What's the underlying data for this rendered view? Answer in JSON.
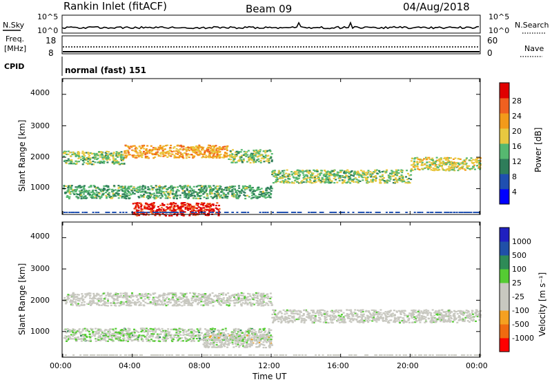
{
  "header": {
    "station": "Rankin Inlet (fitACF)",
    "beam": "Beam 09",
    "date": "04/Aug/2018"
  },
  "noise_panel": {
    "left_label": "N.Sky",
    "right_label": "N.Search",
    "left_ticks": [
      "10^5",
      "10^0"
    ],
    "right_ticks": [
      "10^5",
      "10^0"
    ]
  },
  "freq_panel": {
    "left_label_line1": "Freq.",
    "left_label_line2": "[MHz]",
    "right_label": "Nave",
    "left_ticks": [
      "18",
      "8"
    ],
    "right_ticks": [
      "60",
      "0"
    ]
  },
  "cpid": {
    "label": "CPID",
    "value": "normal (fast) 151"
  },
  "x_axis": {
    "label": "Time UT",
    "ticks": [
      "00:00",
      "04:00",
      "08:00",
      "12:00",
      "16:00",
      "20:00",
      "00:00"
    ]
  },
  "power_panel": {
    "ylabel": "Slant Range [km]",
    "yticks": [
      "4000",
      "3000",
      "2000",
      "1000"
    ],
    "colorbar_label": "Power [dB]",
    "colorbar_ticks": [
      "28",
      "24",
      "20",
      "16",
      "12",
      "8",
      "4"
    ],
    "colors": [
      "#0000ff",
      "#1f4fb0",
      "#2e7d5a",
      "#56b870",
      "#e8c840",
      "#f39a1a",
      "#f06020",
      "#e00000"
    ]
  },
  "velocity_panel": {
    "ylabel": "Slant Range [km]",
    "yticks": [
      "4000",
      "3000",
      "2000",
      "1000"
    ],
    "colorbar_label": "Velocity [m s⁻¹]",
    "colorbar_ticks": [
      "1000",
      "500",
      "100",
      "25",
      "-25",
      "-100",
      "-500",
      "-1000"
    ],
    "colors": [
      "#ff0000",
      "#f06a10",
      "#f5a020",
      "#c8c8c0",
      "#c8c8c0",
      "#55cc33",
      "#2e8b57",
      "#2050a8",
      "#2020c0"
    ]
  },
  "chart_data": {
    "type": "heatmap",
    "title": "Rankin Inlet (fitACF) Beam 09 04/Aug/2018",
    "xlabel": "Time UT",
    "ylabel": "Slant Range [km]",
    "xlim": [
      "00:00",
      "24:00"
    ],
    "ylim": [
      180,
      4500
    ],
    "series": [
      {
        "name": "Power [dB]",
        "range": [
          0,
          30
        ],
        "bands": [
          {
            "t_start": 0.0,
            "t_end": 3.5,
            "range_km": 2000,
            "value": 14
          },
          {
            "t_start": 3.5,
            "t_end": 9.5,
            "range_km": 2200,
            "value": 20
          },
          {
            "t_start": 9.5,
            "t_end": 12.0,
            "range_km": 2050,
            "value": 14
          },
          {
            "t_start": 12.0,
            "t_end": 20.0,
            "range_km": 1400,
            "value": 14
          },
          {
            "t_start": 20.0,
            "t_end": 24.0,
            "range_km": 1800,
            "value": 16
          },
          {
            "t_start": 0.0,
            "t_end": 12.0,
            "range_km": 900,
            "value": 12
          },
          {
            "t_start": 4.0,
            "t_end": 9.0,
            "range_km": 350,
            "value": 28
          }
        ]
      },
      {
        "name": "Velocity [m s⁻¹]",
        "range": [
          -1000,
          1000
        ],
        "bands": [
          {
            "t_start": 0.0,
            "t_end": 12.0,
            "range_km": 2050,
            "value": 0
          },
          {
            "t_start": 12.0,
            "t_end": 24.0,
            "range_km": 1500,
            "value": 0
          },
          {
            "t_start": 0.0,
            "t_end": 12.0,
            "range_km": 900,
            "value": 100
          },
          {
            "t_start": 8.0,
            "t_end": 12.0,
            "range_km": 700,
            "value": -100
          }
        ]
      }
    ]
  }
}
